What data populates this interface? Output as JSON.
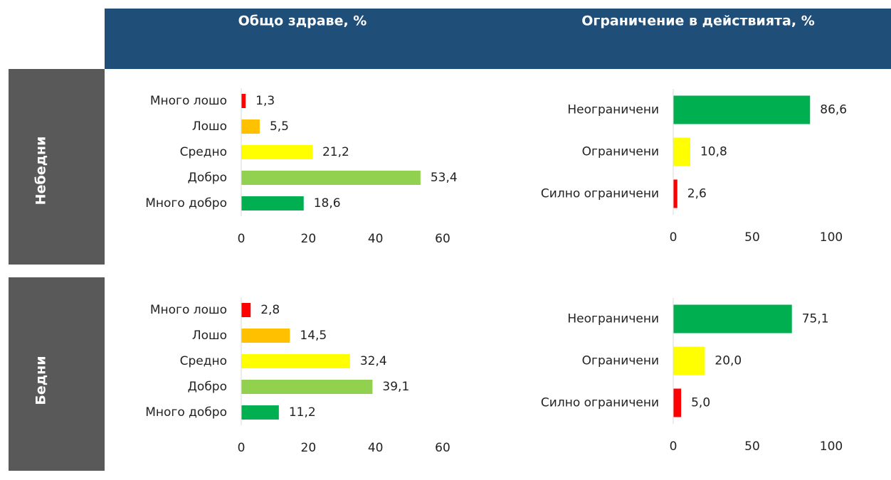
{
  "columns": [
    "Общо здраве, %",
    "Ограничение в действията, %"
  ],
  "rows": [
    "Небедни",
    "Бедни"
  ],
  "chart_data": [
    {
      "type": "bar",
      "orientation": "horizontal",
      "categories": [
        "Много лошо",
        "Лошо",
        "Средно",
        "Добро",
        "Много добро"
      ],
      "values": [
        1.3,
        5.5,
        21.2,
        53.4,
        18.6
      ],
      "value_labels": [
        "1,3",
        "5,5",
        "21,2",
        "53,4",
        "18,6"
      ],
      "colors": [
        "#ff0000",
        "#ffc000",
        "#ffff00",
        "#92d050",
        "#00b050"
      ],
      "xlim": [
        0,
        60
      ],
      "xticks": [
        0,
        20,
        40,
        60
      ]
    },
    {
      "type": "bar",
      "orientation": "horizontal",
      "categories": [
        "Неограничени",
        "Ограничени",
        "Силно ограничени"
      ],
      "values": [
        86.6,
        10.8,
        2.6
      ],
      "value_labels": [
        "86,6",
        "10,8",
        "2,6"
      ],
      "colors": [
        "#00b050",
        "#ffff00",
        "#ff0000"
      ],
      "xlim": [
        0,
        100
      ],
      "xticks": [
        0,
        50,
        100
      ]
    },
    {
      "type": "bar",
      "orientation": "horizontal",
      "categories": [
        "Много лошо",
        "Лошо",
        "Средно",
        "Добро",
        "Много добро"
      ],
      "values": [
        2.8,
        14.5,
        32.4,
        39.1,
        11.2
      ],
      "value_labels": [
        "2,8",
        "14,5",
        "32,4",
        "39,1",
        "11,2"
      ],
      "colors": [
        "#ff0000",
        "#ffc000",
        "#ffff00",
        "#92d050",
        "#00b050"
      ],
      "xlim": [
        0,
        60
      ],
      "xticks": [
        0,
        20,
        40,
        60
      ]
    },
    {
      "type": "bar",
      "orientation": "horizontal",
      "categories": [
        "Неограничени",
        "Ограничени",
        "Силно ограничени"
      ],
      "values": [
        75.1,
        20.0,
        5.0
      ],
      "value_labels": [
        "75,1",
        "20,0",
        "5,0"
      ],
      "colors": [
        "#00b050",
        "#ffff00",
        "#ff0000"
      ],
      "xlim": [
        0,
        100
      ],
      "xticks": [
        0,
        50,
        100
      ]
    }
  ]
}
